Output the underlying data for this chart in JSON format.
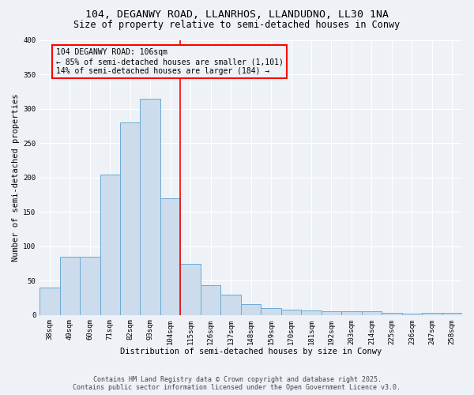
{
  "title1": "104, DEGANWY ROAD, LLANRHOS, LLANDUDNO, LL30 1NA",
  "title2": "Size of property relative to semi-detached houses in Conwy",
  "xlabel": "Distribution of semi-detached houses by size in Conwy",
  "ylabel": "Number of semi-detached properties",
  "bins": [
    "38sqm",
    "49sqm",
    "60sqm",
    "71sqm",
    "82sqm",
    "93sqm",
    "104sqm",
    "115sqm",
    "126sqm",
    "137sqm",
    "148sqm",
    "159sqm",
    "170sqm",
    "181sqm",
    "192sqm",
    "203sqm",
    "214sqm",
    "225sqm",
    "236sqm",
    "247sqm",
    "258sqm"
  ],
  "values": [
    40,
    85,
    85,
    205,
    280,
    315,
    170,
    75,
    43,
    30,
    16,
    10,
    8,
    7,
    6,
    5,
    5,
    3,
    2,
    3,
    3
  ],
  "bar_color": "#ccdcec",
  "bar_edge_color": "#6aaad4",
  "property_bin_index": 6,
  "annotation_label": "104 DEGANWY ROAD: 106sqm",
  "annotation_line1": "← 85% of semi-detached houses are smaller (1,101)",
  "annotation_line2": "14% of semi-detached houses are larger (184) →",
  "ylim": [
    0,
    400
  ],
  "yticks": [
    0,
    50,
    100,
    150,
    200,
    250,
    300,
    350,
    400
  ],
  "footer1": "Contains HM Land Registry data © Crown copyright and database right 2025.",
  "footer2": "Contains public sector information licensed under the Open Government Licence v3.0.",
  "bg_color": "#eef2f7",
  "grid_color": "#ffffff",
  "title_fontsize": 9.5,
  "subtitle_fontsize": 8.5,
  "axis_fontsize": 7.5,
  "tick_fontsize": 6.5,
  "ylabel_fontsize": 7.5,
  "footer_fontsize": 6.0
}
